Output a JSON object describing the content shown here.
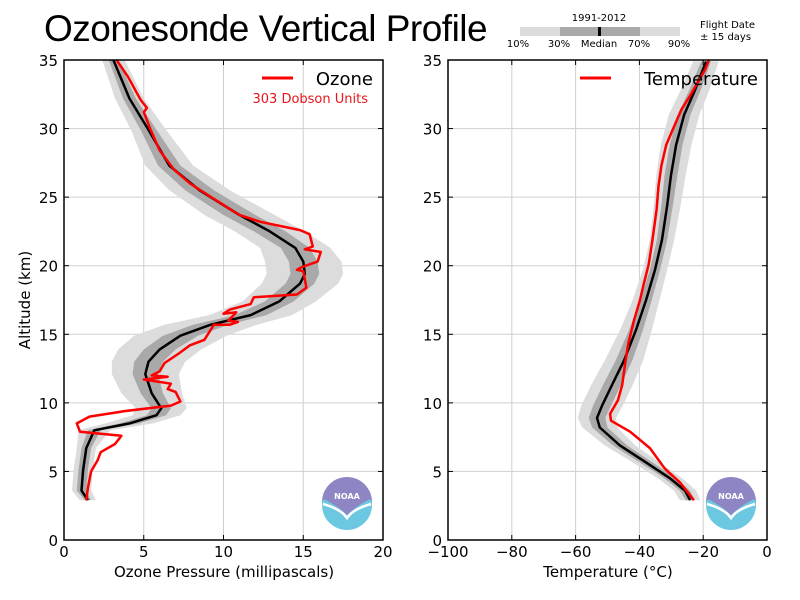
{
  "title": "Ozonesonde Vertical Profile",
  "percentile_key": {
    "period": "1991-2012",
    "labels": [
      "10%",
      "30%",
      "Median",
      "70%",
      "90%"
    ],
    "flight_date_line1": "Flight Date",
    "flight_date_line2": "± 15 days",
    "colors": {
      "outer": "#dcdcdc",
      "inner": "#a9a9a9",
      "median": "#000000"
    }
  },
  "logo": {
    "text": "NOAA",
    "colors": {
      "top": "#8e86c4",
      "bottom": "#6bc8e0"
    }
  },
  "chart_data": [
    {
      "type": "line",
      "panel": "left",
      "xlabel": "Ozone Pressure (millipascals)",
      "ylabel": "Altitude (km)",
      "xlim": [
        0,
        20
      ],
      "ylim": [
        0,
        35
      ],
      "xticks": [
        0,
        5,
        10,
        15,
        20
      ],
      "yticks": [
        0,
        5,
        10,
        15,
        20,
        25,
        30,
        35
      ],
      "grid": true,
      "legend": {
        "label": "Ozone",
        "subtitle": "303 Dobson Units",
        "position": "top-right"
      },
      "colors": {
        "observed": "#ff0000",
        "median": "#000000",
        "band_10_90": "#dcdcdc",
        "band_30_70": "#a9a9a9"
      },
      "median": {
        "x": [
          3.1,
          4.1,
          5.3,
          6.6,
          8.5,
          11.0,
          12.9,
          14.5,
          15.0,
          15.1,
          14.8,
          13.5,
          11.7,
          9.2,
          7.3,
          6.0,
          5.3,
          5.1,
          5.5,
          6.1,
          5.8,
          4.1,
          1.9,
          1.4,
          1.2,
          1.1,
          1.5
        ],
        "y": [
          35,
          32.2,
          29.9,
          27.3,
          25.5,
          23.7,
          22.5,
          21.3,
          20.3,
          19.4,
          18.7,
          17.4,
          16.4,
          15.7,
          14.9,
          13.9,
          13.0,
          12.1,
          10.7,
          9.6,
          9.1,
          8.5,
          8.0,
          6.7,
          5.1,
          3.6,
          2.9
        ]
      },
      "band_30_70_halfwidth": [
        0.3,
        0.4,
        0.5,
        0.7,
        0.9,
        1.0,
        1.0,
        0.9,
        0.9,
        0.9,
        0.9,
        0.9,
        1.0,
        1.1,
        1.1,
        1.0,
        0.9,
        0.8,
        0.7,
        0.6,
        0.6,
        0.6,
        0.4,
        0.3,
        0.3,
        0.3,
        0.2
      ],
      "band_10_90_halfwidth": [
        0.7,
        0.9,
        1.1,
        1.5,
        1.9,
        2.2,
        2.2,
        2.2,
        2.4,
        2.4,
        2.4,
        2.3,
        2.6,
        2.9,
        2.9,
        2.6,
        2.3,
        2.1,
        1.9,
        1.6,
        1.5,
        1.5,
        1.0,
        0.6,
        0.6,
        0.6,
        0.5
      ],
      "observed": {
        "x": [
          3.3,
          4.0,
          4.8,
          5.2,
          5.0,
          5.4,
          6.0,
          6.9,
          7.9,
          9.5,
          11.0,
          12.3,
          14.8,
          15.4,
          15.6,
          15.1,
          16.1,
          15.9,
          14.9,
          14.6,
          15.0,
          15.2,
          14.6,
          11.9,
          11.7,
          10.4,
          10.0,
          10.8,
          10.3,
          10.9,
          10.4,
          9.4,
          8.8,
          7.9,
          7.2,
          6.3,
          6.0,
          5.5,
          6.5,
          5.0,
          6.7,
          6.5,
          7.0,
          7.3,
          6.7,
          3.8,
          1.6,
          0.8,
          1.0,
          3.6,
          3.2,
          2.3,
          2.1,
          1.7,
          1.5,
          1.4
        ],
        "y": [
          35,
          33.8,
          32.1,
          31.5,
          31.2,
          30,
          28.4,
          27,
          26,
          24.8,
          23.7,
          23.2,
          22.6,
          22.3,
          21.4,
          21.2,
          21,
          20.3,
          19.9,
          19.7,
          19.6,
          18.4,
          17.9,
          17.7,
          17.2,
          16.8,
          16.5,
          16.6,
          16.0,
          15.9,
          15.7,
          15.7,
          14.6,
          14.2,
          13.6,
          12.9,
          12.3,
          12.0,
          11.9,
          11.7,
          11.4,
          11.0,
          10.8,
          10.1,
          9.8,
          9.4,
          9.0,
          8.5,
          7.9,
          7.6,
          7.0,
          6.4,
          5.8,
          5.0,
          3.8,
          2.9
        ]
      }
    },
    {
      "type": "line",
      "panel": "right",
      "xlabel": "Temperature (°C)",
      "ylabel": "",
      "xlim": [
        -100,
        0
      ],
      "ylim": [
        0,
        35
      ],
      "xticks": [
        -100,
        -80,
        -60,
        -40,
        -20,
        0
      ],
      "xtick_labels": [
        "−100",
        "−80",
        "−60",
        "−40",
        "−20",
        "0"
      ],
      "yticks": [
        0,
        5,
        10,
        15,
        20,
        25,
        30,
        35
      ],
      "grid": true,
      "legend": {
        "label": "Temperature",
        "position": "top-right"
      },
      "colors": {
        "observed": "#ff0000",
        "median": "#000000",
        "band_10_90": "#dcdcdc",
        "band_30_70": "#a9a9a9"
      },
      "median": {
        "x": [
          -19.1,
          -22.6,
          -26.0,
          -28.5,
          -30.1,
          -31.3,
          -32.9,
          -35.1,
          -37.9,
          -41.1,
          -44.8,
          -48.6,
          -51.7,
          -53.3,
          -52.4,
          -46.1,
          -38.2,
          -30.4,
          -25.7,
          -24.1
        ],
        "y": [
          34.9,
          32.8,
          31.0,
          28.8,
          26.6,
          24.4,
          21.9,
          19.7,
          17.5,
          15.3,
          13.1,
          11.3,
          9.8,
          8.9,
          8.2,
          6.9,
          5.7,
          4.5,
          3.6,
          2.9
        ]
      },
      "band_30_70_halfwidth": [
        1.5,
        1.8,
        2.0,
        2.0,
        2.0,
        1.8,
        1.6,
        1.6,
        1.8,
        2.2,
        2.6,
        2.8,
        2.8,
        2.6,
        2.4,
        2.2,
        2.0,
        1.8,
        1.6,
        1.4
      ],
      "band_10_90_halfwidth": [
        4.0,
        4.5,
        4.8,
        4.8,
        4.6,
        4.2,
        3.8,
        3.8,
        4.2,
        5.0,
        6.0,
        6.5,
        6.5,
        6.0,
        5.5,
        4.8,
        4.2,
        3.8,
        3.5,
        3.2
      ],
      "observed": {
        "x": [
          -18.2,
          -19.4,
          -24.1,
          -26.8,
          -29.6,
          -31.6,
          -33.1,
          -34.0,
          -34.6,
          -35.9,
          -37.1,
          -38.7,
          -39.8,
          -41.6,
          -43.5,
          -44.5,
          -45.4,
          -46.7,
          -49.2,
          -48.9,
          -42.9,
          -36.7,
          -32.0,
          -27.3,
          -22.9
        ],
        "y": [
          35,
          34.3,
          32.4,
          31.4,
          29.9,
          28.8,
          27.3,
          25.8,
          24.1,
          21.9,
          20.1,
          18.6,
          17.5,
          16.1,
          14.3,
          12.8,
          11.3,
          10.2,
          9.2,
          8.7,
          7.9,
          6.7,
          5.2,
          4.2,
          2.9
        ]
      }
    }
  ]
}
